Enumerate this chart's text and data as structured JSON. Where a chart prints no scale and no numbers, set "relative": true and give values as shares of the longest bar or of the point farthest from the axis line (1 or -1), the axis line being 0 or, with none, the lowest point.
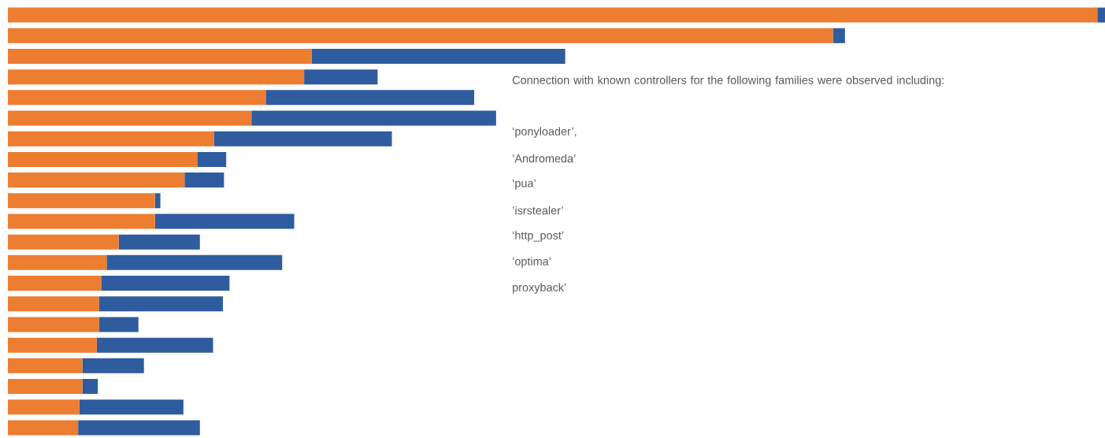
{
  "chart_data": {
    "type": "bar",
    "orientation": "horizontal",
    "stacked": true,
    "relative": true,
    "categories": [
      null,
      null,
      null,
      null,
      null,
      null,
      null,
      null,
      null,
      null,
      null,
      null,
      null,
      null,
      null,
      null,
      null,
      null,
      null,
      null,
      null
    ],
    "series": [
      {
        "color": "#ed7d31",
        "values": [
          0.993,
          0.752,
          0.277,
          0.27,
          0.235,
          0.222,
          0.188,
          0.173,
          0.161,
          0.134,
          0.134,
          0.101,
          0.09,
          0.085,
          0.083,
          0.083,
          0.081,
          0.068,
          0.068,
          0.065,
          0.064
        ]
      },
      {
        "color": "#2e5c9e",
        "values": [
          0.007,
          0.011,
          0.231,
          0.067,
          0.19,
          0.223,
          0.162,
          0.026,
          0.036,
          0.005,
          0.127,
          0.074,
          0.16,
          0.117,
          0.113,
          0.036,
          0.106,
          0.056,
          0.014,
          0.095,
          0.111
        ]
      }
    ],
    "annotations": [
      "Connection with known controllers for the following families were observed including:",
      "‘ponyloader’,",
      "’Andromeda’",
      "‘pua’",
      "’isrstealer’",
      "‘http_post’",
      "’optima’",
      "proxyback’"
    ]
  }
}
